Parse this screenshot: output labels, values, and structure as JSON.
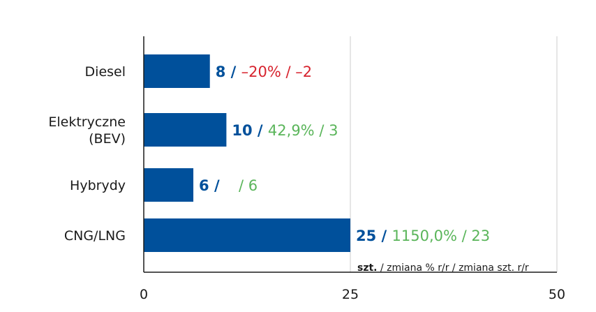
{
  "chart_data": {
    "type": "bar",
    "orientation": "horizontal",
    "categories": [
      "Diesel",
      "Elektryczne (BEV)",
      "Hybrydy",
      "CNG/LNG"
    ],
    "category_lines": [
      [
        "Diesel"
      ],
      [
        "Elektryczne",
        "(BEV)"
      ],
      [
        "Hybrydy"
      ],
      [
        "CNG/LNG"
      ]
    ],
    "values": [
      8,
      10,
      6,
      25
    ],
    "pct_change": [
      "–20%",
      "42,9%",
      "",
      "1150,0%"
    ],
    "abs_change": [
      "–2",
      "3",
      "6",
      "23"
    ],
    "change_direction": [
      "negative",
      "positive",
      "positive",
      "positive"
    ],
    "xlim": [
      0,
      50
    ],
    "xticks": [
      "0",
      "25",
      "50"
    ],
    "grid": true,
    "legend_note": {
      "bold": "szt.",
      "rest": " / zmiana % r/r / zmiana szt. r/r"
    },
    "colors": {
      "bar": "#00509b",
      "value": "#00509b",
      "positive": "#5ab55a",
      "negative": "#d7232e",
      "grid": "#cccccc",
      "axis": "#1a1a1a"
    }
  }
}
